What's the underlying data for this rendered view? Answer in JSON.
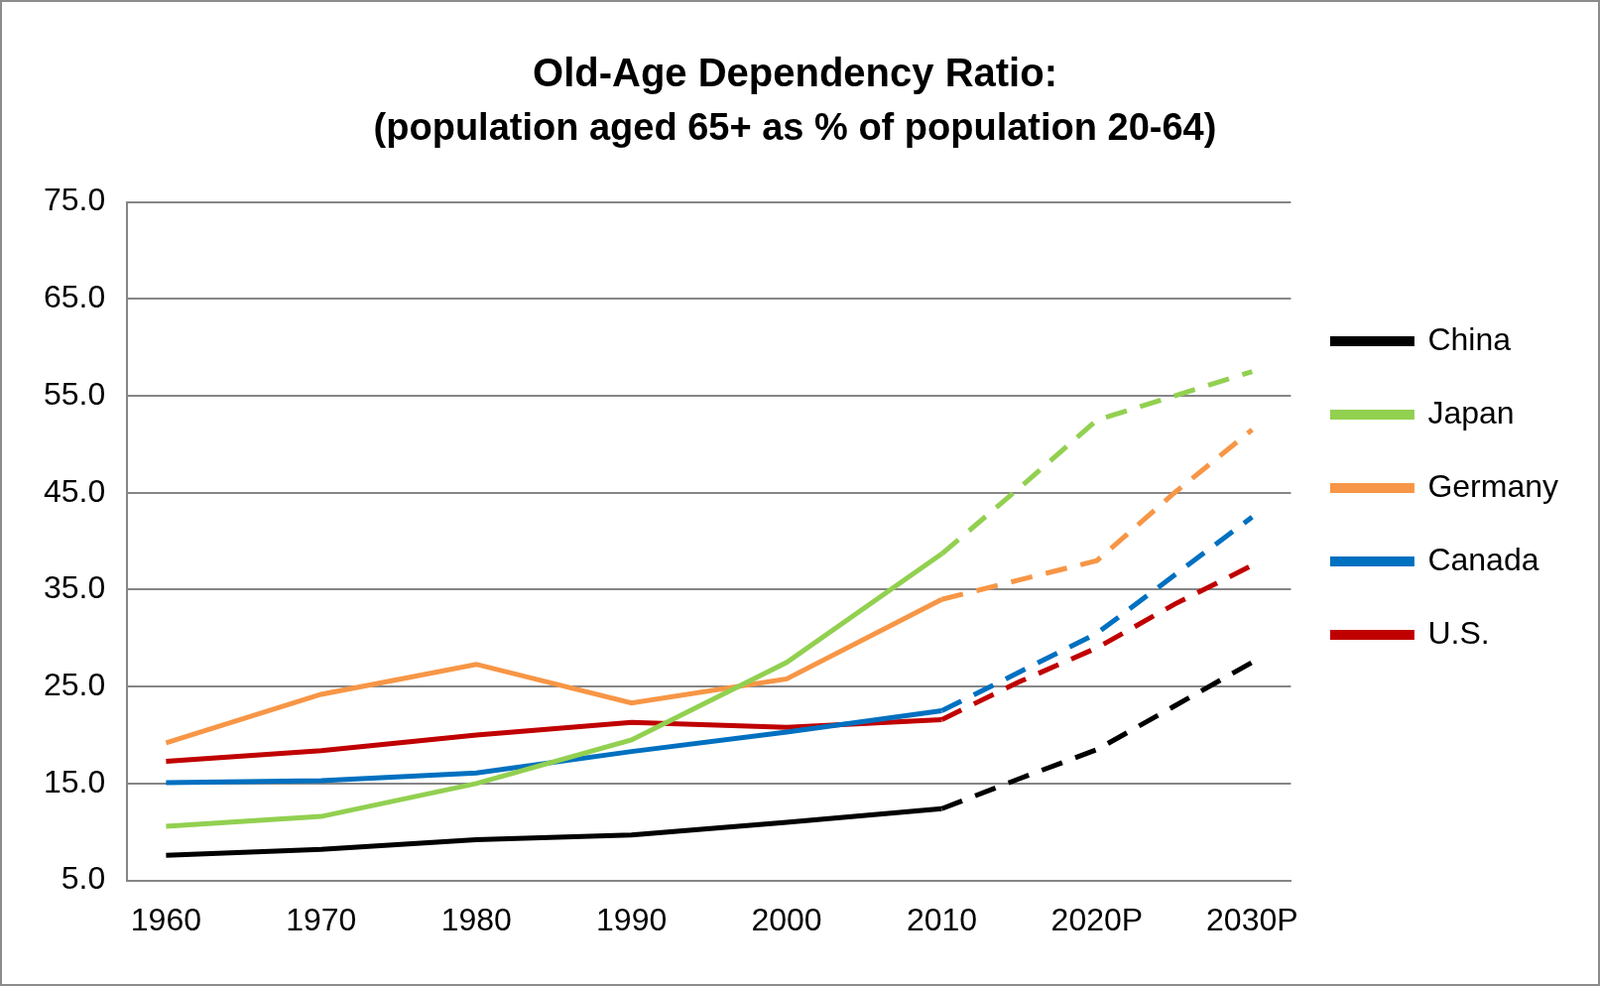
{
  "chart_data": {
    "type": "line",
    "title": "Old-Age Dependency Ratio:",
    "subtitle": "(population aged 65+ as % of population 20-64)",
    "categories": [
      "1960",
      null,
      "1970",
      null,
      "1980",
      null,
      "1990",
      null,
      "2000",
      null,
      "2010",
      null,
      "2020P",
      null,
      "2030P"
    ],
    "projection_start": "2010",
    "series": [
      {
        "name": "China",
        "color": "#000000",
        "values": [
          7.6,
          null,
          8.2,
          null,
          9.2,
          null,
          9.7,
          null,
          11.0,
          null,
          12.4,
          15.5,
          18.5,
          23.0,
          27.5
        ]
      },
      {
        "name": "Japan",
        "color": "#92d050",
        "values": [
          10.6,
          null,
          11.6,
          null,
          15.0,
          null,
          19.5,
          null,
          27.5,
          null,
          38.7,
          45.5,
          52.5,
          55.0,
          57.5
        ]
      },
      {
        "name": "Germany",
        "color": "#f79646",
        "values": [
          19.2,
          null,
          24.2,
          null,
          27.3,
          null,
          23.3,
          null,
          25.8,
          null,
          34.0,
          36.0,
          38.0,
          45.0,
          51.5
        ]
      },
      {
        "name": "Canada",
        "color": "#0070c0",
        "values": [
          15.1,
          null,
          15.3,
          null,
          16.1,
          null,
          18.3,
          null,
          20.3,
          null,
          22.5,
          26.5,
          30.5,
          36.5,
          42.5
        ]
      },
      {
        "name": "U.S.",
        "color": "#c00000",
        "values": [
          17.3,
          null,
          18.4,
          null,
          20.0,
          null,
          21.3,
          null,
          20.8,
          null,
          21.6,
          25.5,
          29.0,
          33.5,
          37.5
        ]
      }
    ],
    "ylim": [
      5,
      75
    ],
    "yticks": [
      {
        "value": 5,
        "label": "5.0"
      },
      {
        "value": 15,
        "label": "15.0"
      },
      {
        "value": 25,
        "label": "25.0"
      },
      {
        "value": 35,
        "label": "35.0"
      },
      {
        "value": 45,
        "label": "45.0"
      },
      {
        "value": 55,
        "label": "55.0"
      },
      {
        "value": 65,
        "label": "65.0"
      },
      {
        "value": 75,
        "label": "75.0"
      }
    ],
    "grid": true,
    "legend": "right"
  }
}
